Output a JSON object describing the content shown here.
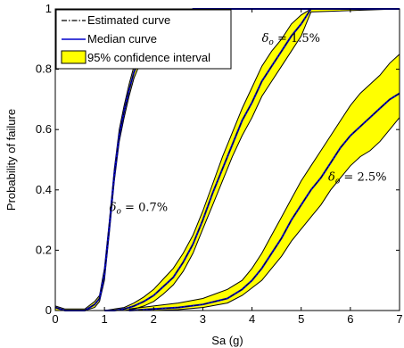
{
  "chart_data": {
    "type": "line",
    "xlabel": "Sa (g)",
    "ylabel": "Probability of failure",
    "xlim": [
      0,
      7
    ],
    "ylim": [
      0,
      1
    ],
    "xticks": [
      "0",
      "1",
      "2",
      "3",
      "4",
      "5",
      "6",
      "7"
    ],
    "yticks": [
      "0",
      "0.2",
      "0.4",
      "0.6",
      "0.8",
      "1"
    ],
    "grid": false,
    "legend_position": "top-left",
    "legend": [
      {
        "label": "Estimated curve",
        "style": "dash-dot",
        "color": "#000000"
      },
      {
        "label": "Median curve",
        "style": "solid",
        "color": "#0000cc"
      },
      {
        "label": "95% confidence interval",
        "style": "patch",
        "color": "#ffff00"
      }
    ],
    "annotations": [
      {
        "symbol": "δ",
        "sub": "o",
        "text": " = 0.7%",
        "x": 1.1,
        "y": 0.33
      },
      {
        "symbol": "δ",
        "sub": "o",
        "text": " = 1.5%",
        "x": 4.2,
        "y": 0.89
      },
      {
        "symbol": "δ",
        "sub": "o",
        "text": " = 2.5%",
        "x": 5.55,
        "y": 0.43
      }
    ],
    "series": [
      {
        "group": "0.7%",
        "x": [
          0.0,
          0.2,
          0.4,
          0.6,
          0.8,
          0.9,
          1.0,
          1.1,
          1.2,
          1.3,
          1.4,
          1.5,
          1.6,
          1.8,
          2.0,
          2.2,
          2.4,
          2.6,
          2.8,
          3.0,
          7.0
        ],
        "median": [
          0.01,
          0.0,
          0.0,
          0.0,
          0.02,
          0.04,
          0.12,
          0.28,
          0.45,
          0.58,
          0.66,
          0.73,
          0.79,
          0.87,
          0.92,
          0.95,
          0.97,
          0.98,
          1.0,
          1.0,
          1.0
        ],
        "lower": [
          0.0,
          0.0,
          0.0,
          0.0,
          0.01,
          0.03,
          0.1,
          0.26,
          0.43,
          0.56,
          0.64,
          0.71,
          0.77,
          0.85,
          0.9,
          0.94,
          0.96,
          0.97,
          0.99,
          1.0,
          1.0
        ],
        "upper": [
          0.015,
          0.005,
          0.005,
          0.005,
          0.03,
          0.05,
          0.14,
          0.3,
          0.47,
          0.6,
          0.68,
          0.75,
          0.81,
          0.89,
          0.94,
          0.97,
          0.98,
          0.99,
          1.0,
          1.0,
          1.0
        ]
      },
      {
        "group": "1.5%",
        "x": [
          1.0,
          1.2,
          1.4,
          1.6,
          1.8,
          2.0,
          2.2,
          2.4,
          2.6,
          2.8,
          3.0,
          3.2,
          3.4,
          3.6,
          3.8,
          4.0,
          4.2,
          4.4,
          4.6,
          4.8,
          5.0,
          5.2,
          7.0
        ],
        "median": [
          0.0,
          0.0,
          0.005,
          0.015,
          0.03,
          0.05,
          0.08,
          0.11,
          0.16,
          0.22,
          0.3,
          0.39,
          0.47,
          0.55,
          0.63,
          0.69,
          0.76,
          0.81,
          0.86,
          0.91,
          0.95,
          1.0,
          1.0
        ],
        "lower": [
          0.0,
          0.0,
          0.0,
          0.005,
          0.015,
          0.03,
          0.055,
          0.085,
          0.13,
          0.19,
          0.27,
          0.35,
          0.43,
          0.51,
          0.58,
          0.64,
          0.71,
          0.76,
          0.81,
          0.86,
          0.91,
          0.99,
          1.0
        ],
        "upper": [
          0.0,
          0.005,
          0.01,
          0.025,
          0.045,
          0.07,
          0.105,
          0.14,
          0.19,
          0.25,
          0.33,
          0.42,
          0.51,
          0.59,
          0.67,
          0.74,
          0.81,
          0.86,
          0.9,
          0.95,
          0.98,
          1.0,
          1.0
        ]
      },
      {
        "group": "2.5%",
        "x": [
          1.5,
          2.0,
          2.5,
          3.0,
          3.5,
          3.8,
          4.0,
          4.2,
          4.4,
          4.6,
          4.8,
          5.0,
          5.2,
          5.4,
          5.6,
          5.8,
          6.0,
          6.2,
          6.4,
          6.6,
          6.8,
          7.0
        ],
        "median": [
          0.0,
          0.005,
          0.01,
          0.02,
          0.04,
          0.07,
          0.1,
          0.14,
          0.19,
          0.24,
          0.3,
          0.35,
          0.4,
          0.44,
          0.49,
          0.54,
          0.58,
          0.61,
          0.64,
          0.67,
          0.7,
          0.72
        ],
        "lower": [
          0.0,
          0.0,
          0.003,
          0.01,
          0.025,
          0.05,
          0.075,
          0.1,
          0.14,
          0.18,
          0.23,
          0.27,
          0.31,
          0.35,
          0.4,
          0.44,
          0.48,
          0.51,
          0.53,
          0.56,
          0.6,
          0.64
        ],
        "upper": [
          0.005,
          0.015,
          0.025,
          0.04,
          0.07,
          0.1,
          0.14,
          0.19,
          0.25,
          0.31,
          0.37,
          0.43,
          0.48,
          0.53,
          0.58,
          0.63,
          0.68,
          0.72,
          0.75,
          0.78,
          0.82,
          0.85
        ]
      }
    ]
  }
}
